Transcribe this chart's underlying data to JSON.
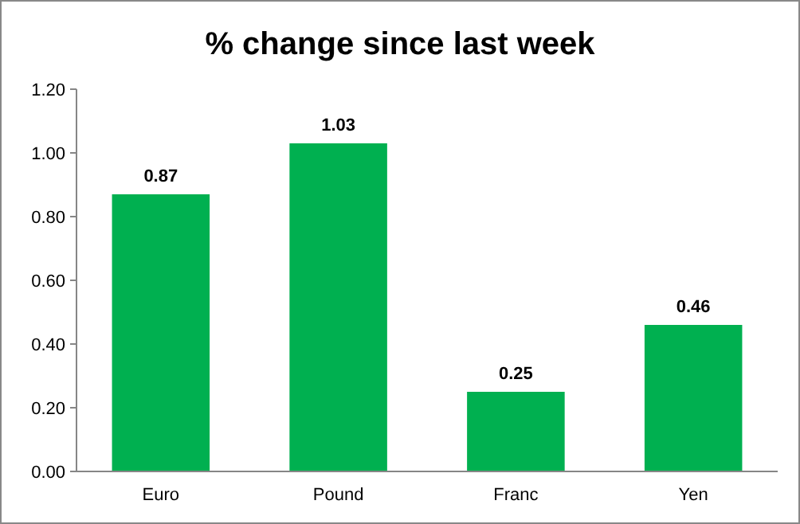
{
  "chart_data": {
    "type": "bar",
    "title": "% change since last week",
    "categories": [
      "Euro",
      "Pound",
      "Franc",
      "Yen"
    ],
    "values": [
      0.87,
      1.03,
      0.25,
      0.46
    ],
    "color": "#00b050",
    "ylim": [
      0,
      1.2
    ],
    "yticks": [
      {
        "value": 0,
        "label": "0.00"
      },
      {
        "value": 0.2,
        "label": "0.20"
      },
      {
        "value": 0.4,
        "label": "0.40"
      },
      {
        "value": 0.6,
        "label": "0.60"
      },
      {
        "value": 0.8,
        "label": "0.80"
      },
      {
        "value": 1,
        "label": "1.00"
      },
      {
        "value": 1.2,
        "label": "1.20"
      }
    ],
    "data_labels": true
  }
}
